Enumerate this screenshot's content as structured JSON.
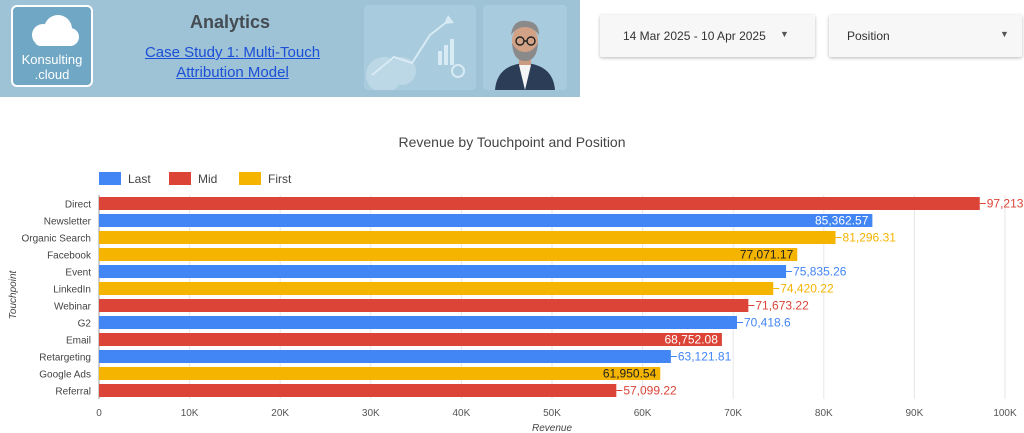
{
  "header": {
    "logo": {
      "line1": "Konsulting",
      "line2": ".cloud"
    },
    "title": "Analytics",
    "case_study_line1": "Case Study 1: Multi-Touch",
    "case_study_line2": "Attribution Model"
  },
  "controls": {
    "date_range": "14 Mar 2025 - 10 Apr 2025",
    "dimension": "Position"
  },
  "colors": {
    "Last": "#4285f4",
    "Mid": "#db4437",
    "First": "#f4b400"
  },
  "chart_data": {
    "type": "bar",
    "orientation": "horizontal",
    "title": "Revenue by Touchpoint and Position",
    "xlabel": "Revenue",
    "ylabel": "Touchpoint",
    "xlim": [
      0,
      100000
    ],
    "ticks": [
      {
        "value": 0,
        "label": "0"
      },
      {
        "value": 10000,
        "label": "10K"
      },
      {
        "value": 20000,
        "label": "20K"
      },
      {
        "value": 30000,
        "label": "30K"
      },
      {
        "value": 40000,
        "label": "40K"
      },
      {
        "value": 50000,
        "label": "50K"
      },
      {
        "value": 60000,
        "label": "60K"
      },
      {
        "value": 70000,
        "label": "70K"
      },
      {
        "value": 80000,
        "label": "80K"
      },
      {
        "value": 90000,
        "label": "90K"
      },
      {
        "value": 100000,
        "label": "100K"
      }
    ],
    "grid": true,
    "legend_position": "top-left",
    "legend": [
      "Last",
      "Mid",
      "First"
    ],
    "bars": [
      {
        "category": "Direct",
        "series": "Mid",
        "value": 97213,
        "label": "97,213"
      },
      {
        "category": "Newsletter",
        "series": "Last",
        "value": 85362.57,
        "label": "85,362.57"
      },
      {
        "category": "Organic Search",
        "series": "First",
        "value": 81296.31,
        "label": "81,296.31"
      },
      {
        "category": "Facebook",
        "series": "First",
        "value": 77071.17,
        "label": "77,071.17"
      },
      {
        "category": "Event",
        "series": "Last",
        "value": 75835.26,
        "label": "75,835.26"
      },
      {
        "category": "LinkedIn",
        "series": "First",
        "value": 74420.22,
        "label": "74,420.22"
      },
      {
        "category": "Webinar",
        "series": "Mid",
        "value": 71673.22,
        "label": "71,673.22"
      },
      {
        "category": "G2",
        "series": "Last",
        "value": 70418.6,
        "label": "70,418.6"
      },
      {
        "category": "Email",
        "series": "Mid",
        "value": 68752.08,
        "label": "68,752.08"
      },
      {
        "category": "Retargeting",
        "series": "Last",
        "value": 63121.81,
        "label": "63,121.81"
      },
      {
        "category": "Google Ads",
        "series": "First",
        "value": 61950.54,
        "label": "61,950.54"
      },
      {
        "category": "Referral",
        "series": "Mid",
        "value": 57099.22,
        "label": "57,099.22"
      }
    ]
  }
}
